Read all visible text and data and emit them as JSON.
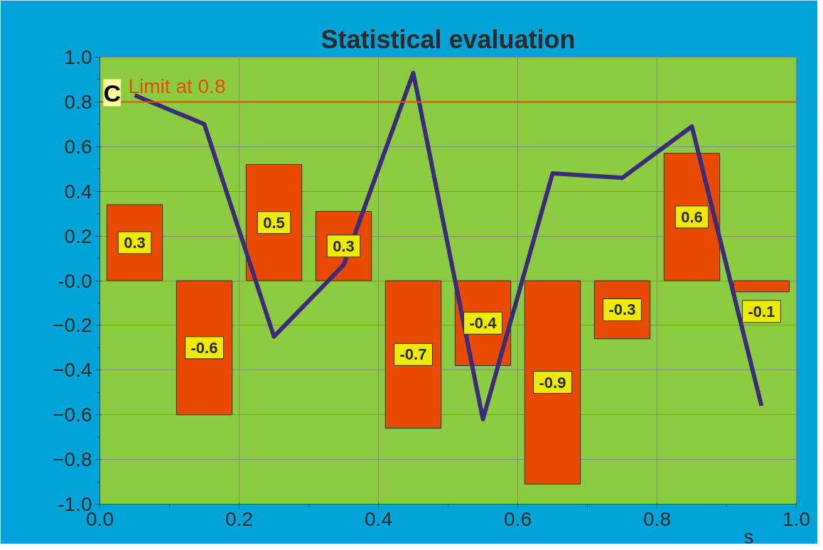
{
  "chart_data": {
    "type": "bar",
    "title": "Statistical evaluation",
    "xlabel": "s",
    "x": [
      0.05,
      0.15,
      0.25,
      0.35,
      0.45,
      0.55,
      0.65,
      0.75,
      0.85,
      0.95
    ],
    "series": [
      {
        "color": "#e84a00",
        "values": [
          0.34,
          -0.6,
          0.52,
          0.31,
          -0.66,
          -0.38,
          -0.91,
          -0.26,
          0.57,
          -0.05
        ],
        "value_labels": [
          "0.3",
          "-0.6",
          "0.5",
          "0.3",
          "-0.7",
          "-0.4",
          "-0.9",
          "-0.3",
          "0.6",
          "-0.1"
        ]
      },
      {
        "type": "line",
        "color": "#3c2a7a",
        "values": [
          0.83,
          0.7,
          -0.25,
          0.07,
          0.93,
          -0.62,
          0.48,
          0.46,
          0.69,
          -0.56
        ]
      }
    ],
    "xlim": [
      0.0,
      1.0
    ],
    "xticks": [
      {
        "value": 0.0,
        "label": "0.0"
      },
      0.2,
      0.4,
      0.6,
      0.8,
      {
        "value": 1.0,
        "label": "1.0"
      }
    ],
    "ylim": [
      -1.0,
      1.0
    ],
    "yticks": [
      {
        "value": -1.0,
        "label": "-1.0"
      },
      -0.8,
      -0.6,
      -0.4,
      -0.2,
      {
        "value": 0,
        "label": "-0.0"
      },
      0.2,
      0.4,
      0.6,
      0.8,
      {
        "value": 1.0,
        "label": "1.0"
      }
    ],
    "ref_lines": [
      {
        "axis": "y",
        "value": 0.8,
        "label": "Limit at 0.8",
        "color": "#e84a00"
      }
    ],
    "annotations": [
      "C"
    ],
    "grid": true
  }
}
